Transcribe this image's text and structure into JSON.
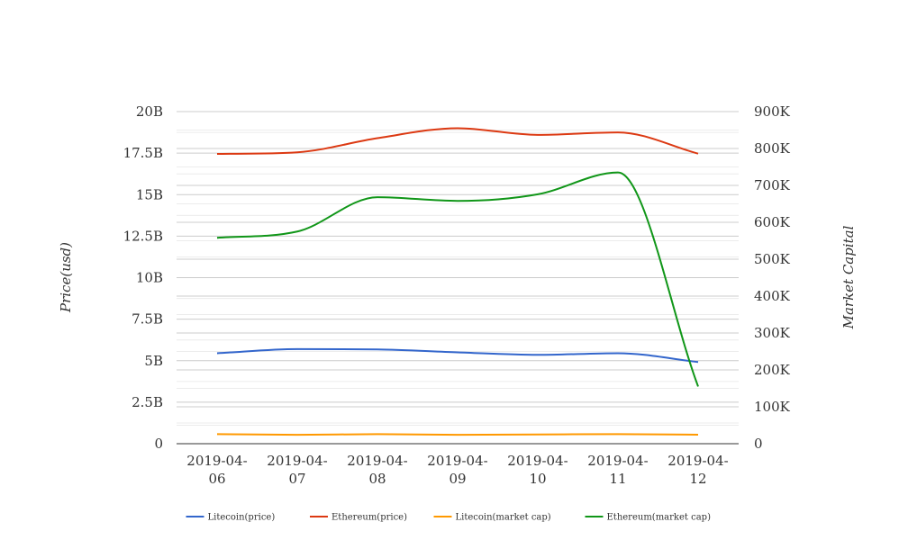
{
  "chart_data": {
    "type": "line",
    "title": "",
    "categories": [
      [
        "2019-04-",
        "06"
      ],
      [
        "2019-04-",
        "07"
      ],
      [
        "2019-04-",
        "08"
      ],
      [
        "2019-04-",
        "09"
      ],
      [
        "2019-04-",
        "10"
      ],
      [
        "2019-04-",
        "11"
      ],
      [
        "2019-04-",
        "12"
      ]
    ],
    "y_left": {
      "label": "Price(usd)",
      "range": [
        0,
        20000000000
      ],
      "ticks": [
        {
          "value": 0,
          "label": "0"
        },
        {
          "value": 2500000000,
          "label": "2.5B"
        },
        {
          "value": 5000000000,
          "label": "5B"
        },
        {
          "value": 7500000000,
          "label": "7.5B"
        },
        {
          "value": 10000000000,
          "label": "10B"
        },
        {
          "value": 12500000000,
          "label": "12.5B"
        },
        {
          "value": 15000000000,
          "label": "15B"
        },
        {
          "value": 17500000000,
          "label": "17.5B"
        },
        {
          "value": 20000000000,
          "label": "20B"
        }
      ]
    },
    "y_right": {
      "label": "Market Capital",
      "range": [
        0,
        900000
      ],
      "ticks": [
        {
          "value": 0,
          "label": "0"
        },
        {
          "value": 100000,
          "label": "100K"
        },
        {
          "value": 200000,
          "label": "200K"
        },
        {
          "value": 300000,
          "label": "300K"
        },
        {
          "value": 400000,
          "label": "400K"
        },
        {
          "value": 500000,
          "label": "500K"
        },
        {
          "value": 600000,
          "label": "600K"
        },
        {
          "value": 700000,
          "label": "700K"
        },
        {
          "value": 800000,
          "label": "800K"
        },
        {
          "value": 900000,
          "label": "900K"
        }
      ]
    },
    "grid": true,
    "legend_position": "bottom-center",
    "series": [
      {
        "name": "Litecoin(price)",
        "axis": "left",
        "color": "#3366cc",
        "values": [
          5450000000,
          5700000000,
          5680000000,
          5500000000,
          5350000000,
          5450000000,
          4920000000
        ]
      },
      {
        "name": "Ethereum(price)",
        "axis": "left",
        "color": "#dc3912",
        "values": [
          17450000000,
          17550000000,
          18400000000,
          19000000000,
          18600000000,
          18750000000,
          17470000000
        ]
      },
      {
        "name": "Litecoin(market cap)",
        "axis": "right",
        "color": "#ff9900",
        "values": [
          26000,
          24000,
          26000,
          24000,
          25000,
          26000,
          24500
        ]
      },
      {
        "name": "Ethereum(market cap)",
        "axis": "right",
        "color": "#109618",
        "values": [
          558000,
          575000,
          668000,
          658000,
          676000,
          735000,
          155000
        ]
      }
    ]
  }
}
